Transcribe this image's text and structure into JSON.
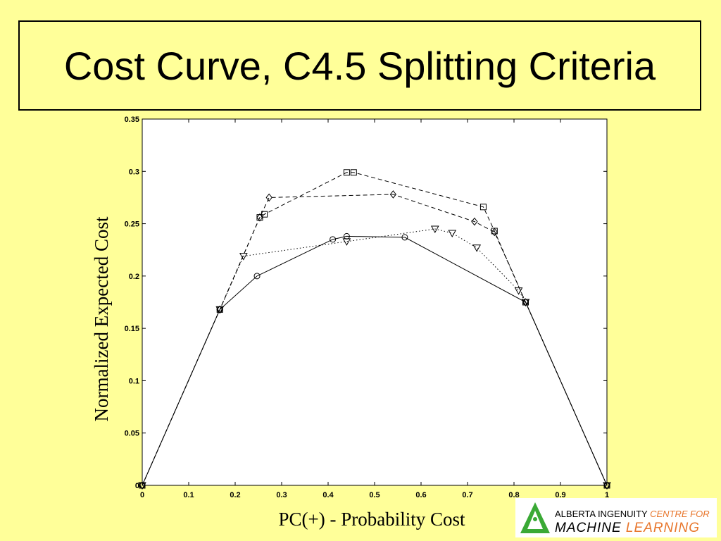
{
  "title": "Cost Curve, C4.5 Splitting Criteria",
  "logo": {
    "line1_a": "ALBERTA INGENUITY",
    "line1_b": "CENTRE FOR",
    "line2_a": "MACHINE",
    "line2_b": "LEARNING"
  },
  "colors": {
    "background": "#ffff99",
    "plot": "#ffffff",
    "ink": "#000000",
    "logo_green": "#3aa935",
    "logo_orange": "#e8762c"
  },
  "chart_data": {
    "type": "line",
    "title": "",
    "xlabel": "PC(+) - Probability Cost",
    "ylabel": "Normalized Expected Cost",
    "xlim": [
      0,
      1
    ],
    "ylim": [
      0,
      0.35
    ],
    "xticks": [
      "0",
      "0.1",
      "0.2",
      "0.3",
      "0.4",
      "0.5",
      "0.6",
      "0.7",
      "0.8",
      "0.9",
      "1"
    ],
    "yticks": [
      "0",
      "0.05",
      "0.1",
      "0.15",
      "0.2",
      "0.25",
      "0.3",
      "0.35"
    ],
    "grid": false,
    "series": [
      {
        "style": "solid",
        "marker": "circle",
        "x": [
          0,
          0.167,
          0.247,
          0.41,
          0.44,
          0.565,
          0.825,
          1
        ],
        "y": [
          0,
          0.168,
          0.2,
          0.235,
          0.238,
          0.237,
          0.175,
          0
        ]
      },
      {
        "style": "dotted",
        "marker": "triangle-down",
        "x": [
          0,
          0.167,
          0.218,
          0.44,
          0.63,
          0.667,
          0.72,
          0.81,
          0.825,
          1
        ],
        "y": [
          0,
          0.168,
          0.219,
          0.233,
          0.245,
          0.241,
          0.227,
          0.186,
          0.175,
          0
        ]
      },
      {
        "style": "dashed",
        "marker": "square",
        "x": [
          0,
          0.167,
          0.253,
          0.263,
          0.44,
          0.455,
          0.734,
          0.758,
          0.825,
          1
        ],
        "y": [
          0,
          0.168,
          0.256,
          0.259,
          0.299,
          0.299,
          0.266,
          0.243,
          0.175,
          0
        ]
      },
      {
        "style": "dashed",
        "marker": "diamond",
        "x": [
          0,
          0.167,
          0.253,
          0.273,
          0.54,
          0.715,
          0.758,
          0.825,
          1
        ],
        "y": [
          0,
          0.168,
          0.256,
          0.275,
          0.278,
          0.252,
          0.242,
          0.175,
          0
        ]
      }
    ]
  }
}
